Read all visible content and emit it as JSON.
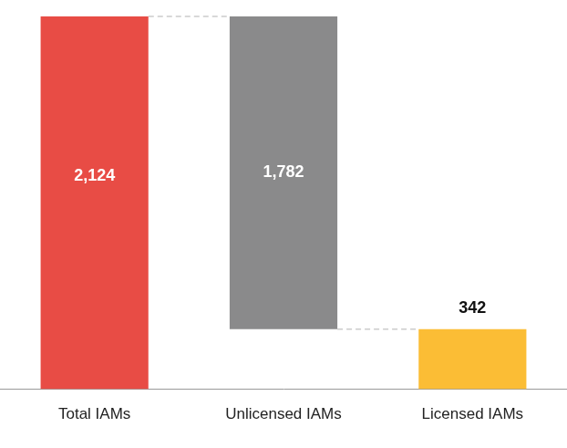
{
  "chart_data": {
    "type": "waterfall",
    "categories": [
      "Total IAMs",
      "Unlicensed IAMs",
      "Licensed IAMs"
    ],
    "values": [
      2124,
      1782,
      342
    ],
    "value_labels": [
      "2,124",
      "1,782",
      "342"
    ],
    "colors": [
      "#e84c45",
      "#8a8a8b",
      "#fbbd35"
    ],
    "ylim": [
      0,
      2124
    ],
    "grid": false,
    "data_labels": true,
    "tick_labels": "x"
  }
}
